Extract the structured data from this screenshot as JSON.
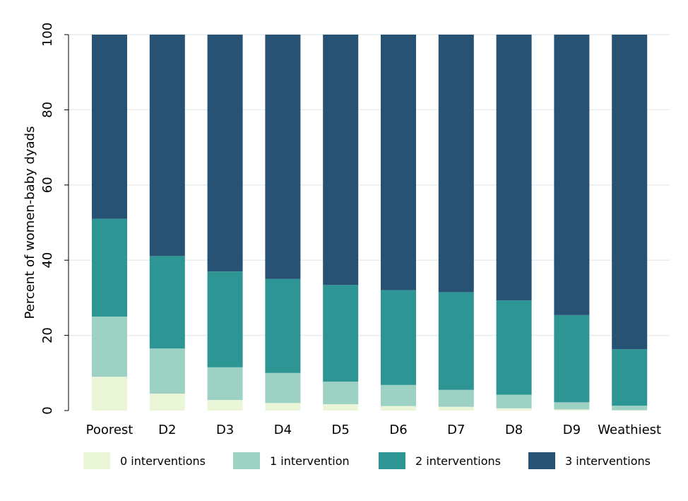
{
  "chart_data": {
    "type": "bar",
    "stacked": true,
    "categories": [
      "Poorest",
      "D2",
      "D3",
      "D4",
      "D5",
      "D6",
      "D7",
      "D8",
      "D9",
      "Weathiest"
    ],
    "ylabel": "Percent of women-baby dyads",
    "xlabel": "",
    "ylim": [
      0,
      100
    ],
    "yticks": [
      0,
      20,
      40,
      60,
      80,
      100
    ],
    "grid": true,
    "legend_position": "bottom",
    "series": [
      {
        "name": "0 interventions",
        "color": "#ebf6d8",
        "values": [
          9,
          4.5,
          2.8,
          2,
          1.7,
          1.2,
          1,
          0.6,
          0.3,
          0.1
        ]
      },
      {
        "name": "1 intervention",
        "color": "#9dd1c4",
        "values": [
          16,
          12,
          8.7,
          8,
          6,
          5.6,
          4.5,
          3.6,
          1.9,
          1.2
        ]
      },
      {
        "name": "2 interventions",
        "color": "#2e9595",
        "values": [
          26,
          24.6,
          25.5,
          25,
          25.7,
          25.2,
          26,
          25.1,
          23.2,
          15
        ]
      },
      {
        "name": "3 interventions",
        "color": "#275274",
        "values": [
          49,
          58.9,
          63,
          65,
          66.6,
          68,
          68.5,
          70.7,
          74.6,
          83.7
        ]
      }
    ]
  }
}
